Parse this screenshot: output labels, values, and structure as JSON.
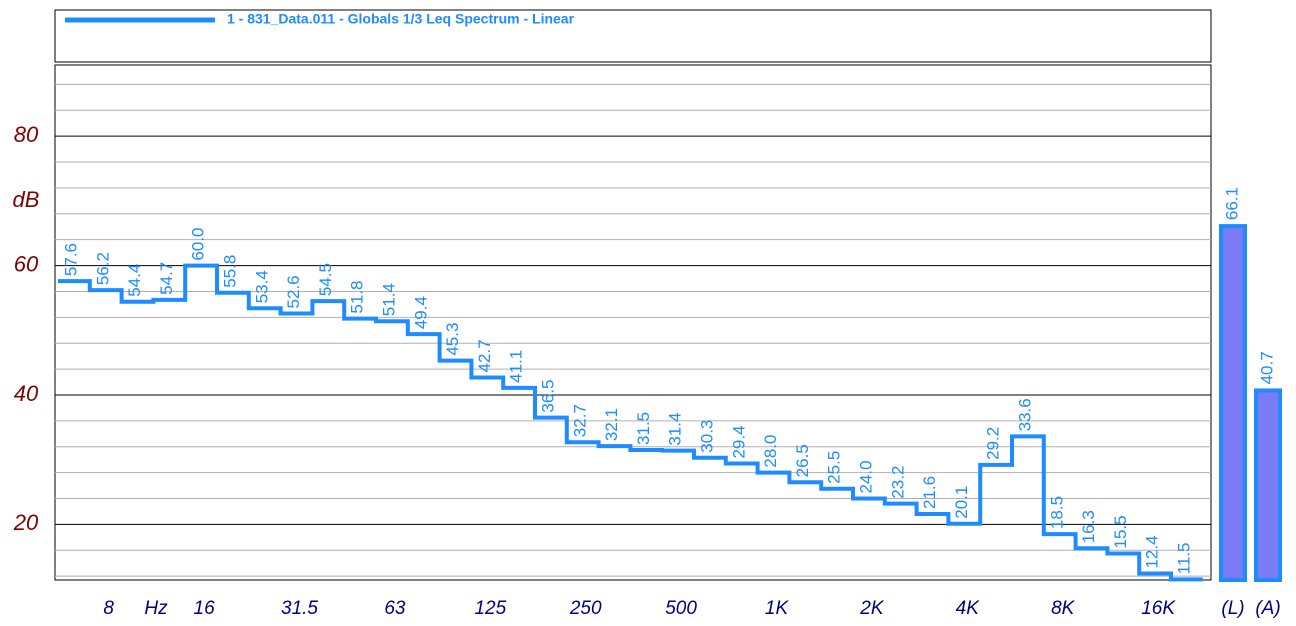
{
  "chart_data": {
    "type": "step",
    "ylabel": "dB",
    "x_unit": "Hz",
    "ylim": [
      11.4,
      91
    ],
    "yticks": [
      20,
      40,
      60,
      80
    ],
    "minor_yticks": [
      12,
      16,
      24,
      28,
      32,
      36,
      44,
      48,
      52,
      56,
      64,
      68,
      72,
      76,
      84,
      88
    ],
    "grid": true,
    "legend": "top",
    "categories": [
      null,
      "8",
      null,
      null,
      "16",
      null,
      null,
      "31.5",
      null,
      null,
      "63",
      null,
      null,
      "125",
      null,
      null,
      "250",
      null,
      null,
      "500",
      null,
      null,
      "1K",
      null,
      null,
      "2K",
      null,
      null,
      "4K",
      null,
      null,
      "8K",
      null,
      null,
      "16K",
      null
    ],
    "series": [
      {
        "name": "1 - 831_Data.011 - Globals 1/3 Leq Spectrum - Linear",
        "color": "#1e8cff",
        "values": [
          57.6,
          56.2,
          54.4,
          54.7,
          60.0,
          55.8,
          53.4,
          52.6,
          54.5,
          51.8,
          51.4,
          49.4,
          45.3,
          42.7,
          41.1,
          36.5,
          32.7,
          32.1,
          31.5,
          31.4,
          30.3,
          29.4,
          28.0,
          26.5,
          25.5,
          24.0,
          23.2,
          21.6,
          20.1,
          29.2,
          33.6,
          18.5,
          16.3,
          15.5,
          12.4,
          11.5
        ],
        "value_labels": [
          "57.6",
          "56.2",
          "54.4",
          "54.7",
          "60.0",
          "55.8",
          "53.4",
          "52.6",
          "54.5",
          "51.8",
          "51.4",
          "49.4",
          "45.3",
          "42.7",
          "41.1",
          "36.5",
          "32.7",
          "32.1",
          "31.5",
          "31.4",
          "30.3",
          "29.4",
          "28.0",
          "26.5",
          "25.5",
          "24.0",
          "23.2",
          "21.6",
          "20.1",
          "29.2",
          "33.6",
          "18.5",
          "16.3",
          "15.5",
          "12.4",
          "11.5"
        ]
      }
    ],
    "overall": {
      "categories": [
        "(L)",
        "(A)"
      ],
      "values": [
        66.1,
        40.7
      ],
      "value_labels": [
        "66.1",
        "40.7"
      ],
      "color": "#7b7bf5",
      "edge_color": "#1e8cff"
    }
  }
}
